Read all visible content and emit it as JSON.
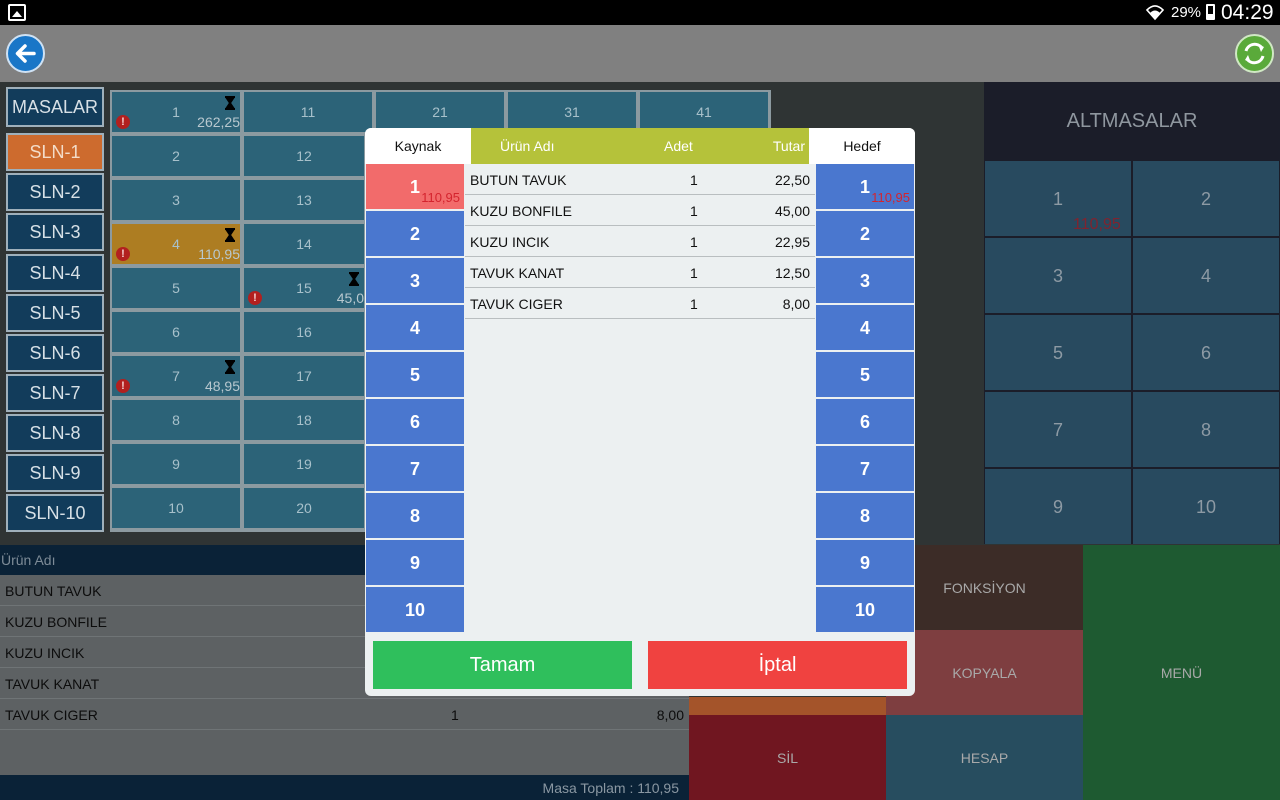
{
  "status_bar": {
    "battery": "29%",
    "time": "04:29",
    "icons": [
      "gallery-icon",
      "wifi-icon",
      "battery-icon"
    ]
  },
  "toolbar": {
    "back_icon": "arrow-left-icon",
    "refresh_icon": "refresh-icon"
  },
  "sidebar": {
    "masalar": "MASALAR",
    "sections": [
      "SLN-1",
      "SLN-2",
      "SLN-3",
      "SLN-4",
      "SLN-5",
      "SLN-6",
      "SLN-7",
      "SLN-8",
      "SLN-9",
      "SLN-10"
    ]
  },
  "tables": {
    "col1": [
      "1",
      "2",
      "3",
      "4",
      "5",
      "6",
      "7",
      "8",
      "9",
      "10"
    ],
    "col2": [
      "11",
      "12",
      "13",
      "14",
      "15",
      "16",
      "17",
      "18",
      "19",
      "20"
    ],
    "top_row": [
      "21",
      "31",
      "41"
    ],
    "amounts": {
      "t1": "262,25",
      "t4": "110,95",
      "t7": "48,95",
      "t15": "45,0"
    }
  },
  "altmasalar": {
    "title": "ALTMASALAR",
    "cells": [
      "1",
      "2",
      "3",
      "4",
      "5",
      "6",
      "7",
      "8",
      "9",
      "10"
    ],
    "cell1_amount": "110,95"
  },
  "order": {
    "header": "Ürün Adı",
    "rows": [
      {
        "name": "BUTUN TAVUK"
      },
      {
        "name": "KUZU BONFILE"
      },
      {
        "name": "KUZU INCIK"
      },
      {
        "name": "TAVUK  KANAT"
      },
      {
        "name": "TAVUK CIGER",
        "qty": "1",
        "total": "8,00"
      }
    ],
    "footer": "Masa Toplam : 110,95"
  },
  "functions": {
    "fonksiyon": "FONKSİYON",
    "kopyala": "KOPYALA",
    "menu": "MENÜ",
    "sil": "SİL",
    "hesap": "HESAP"
  },
  "dialog": {
    "source_label": "Kaynak",
    "target_label": "Hedef",
    "product_label": "Ürün Adı",
    "qty_label": "Adet",
    "total_label": "Tutar",
    "numbers": [
      "1",
      "2",
      "3",
      "4",
      "5",
      "6",
      "7",
      "8",
      "9",
      "10"
    ],
    "source_amount": "110,95",
    "target_amount": "110,95",
    "products": [
      {
        "name": "BUTUN TAVUK",
        "qty": "1",
        "total": "22,50"
      },
      {
        "name": "KUZU BONFILE",
        "qty": "1",
        "total": "45,00"
      },
      {
        "name": "KUZU INCIK",
        "qty": "1",
        "total": "22,95"
      },
      {
        "name": "TAVUK  KANAT",
        "qty": "1",
        "total": "12,50"
      },
      {
        "name": "TAVUK CIGER",
        "qty": "1",
        "total": "8,00"
      }
    ],
    "ok": "Tamam",
    "cancel": "İptal"
  },
  "colors": {
    "accent_blue": "#4a77cf",
    "selected": "#f26b6b",
    "ok_green": "#2fbf5c",
    "cancel_red": "#f04240",
    "header_olive": "#b5c23a"
  }
}
